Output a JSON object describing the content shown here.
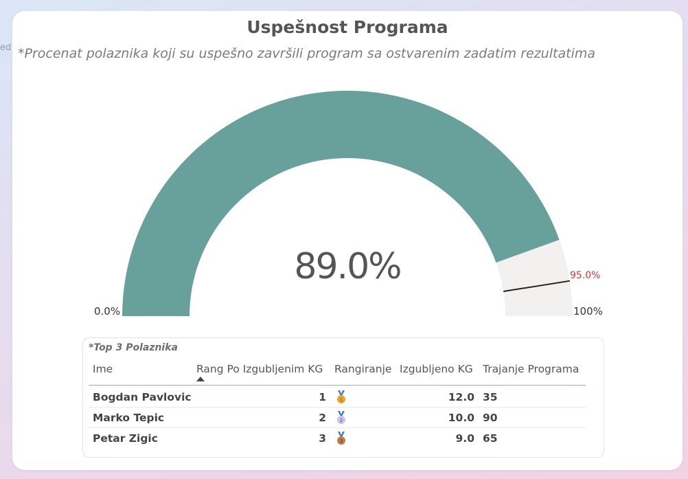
{
  "edge_text": "ed",
  "card": {
    "title": "Uspešnost Programa",
    "subtitle": "*Procenat polaznika koji su uspešno završili program sa ostvarenim zadatim rezultatima"
  },
  "gauge": {
    "value": 89.0,
    "value_label": "89.0%",
    "min": 0,
    "max": 100,
    "min_label": "0.0%",
    "max_label": "100%",
    "target": 95.0,
    "target_label": "95.0%",
    "colors": {
      "fill": "#68a19b",
      "track": "#f2f1ef",
      "target_line": "#222222",
      "target_text": "#d9342b"
    }
  },
  "table": {
    "caption": "*Top 3 Polaznika",
    "columns": [
      "Ime",
      "Rang Po Izgubljenim KG",
      "Rangiranje",
      "Izgubljeno KG",
      "Trajanje Programa"
    ],
    "sorted_column": "Rang Po Izgubljenim KG",
    "rows": [
      {
        "ime": "Bogdan Pavlovic",
        "rang": "1",
        "medal": "gold-medal-icon",
        "izgubljeno": "12.0",
        "trajanje": "35"
      },
      {
        "ime": "Marko Tepic",
        "rang": "2",
        "medal": "silver-medal-icon",
        "izgubljeno": "10.0",
        "trajanje": "90"
      },
      {
        "ime": "Petar Zigic",
        "rang": "3",
        "medal": "bronze-medal-icon",
        "izgubljeno": "9.0",
        "trajanje": "65"
      }
    ]
  }
}
